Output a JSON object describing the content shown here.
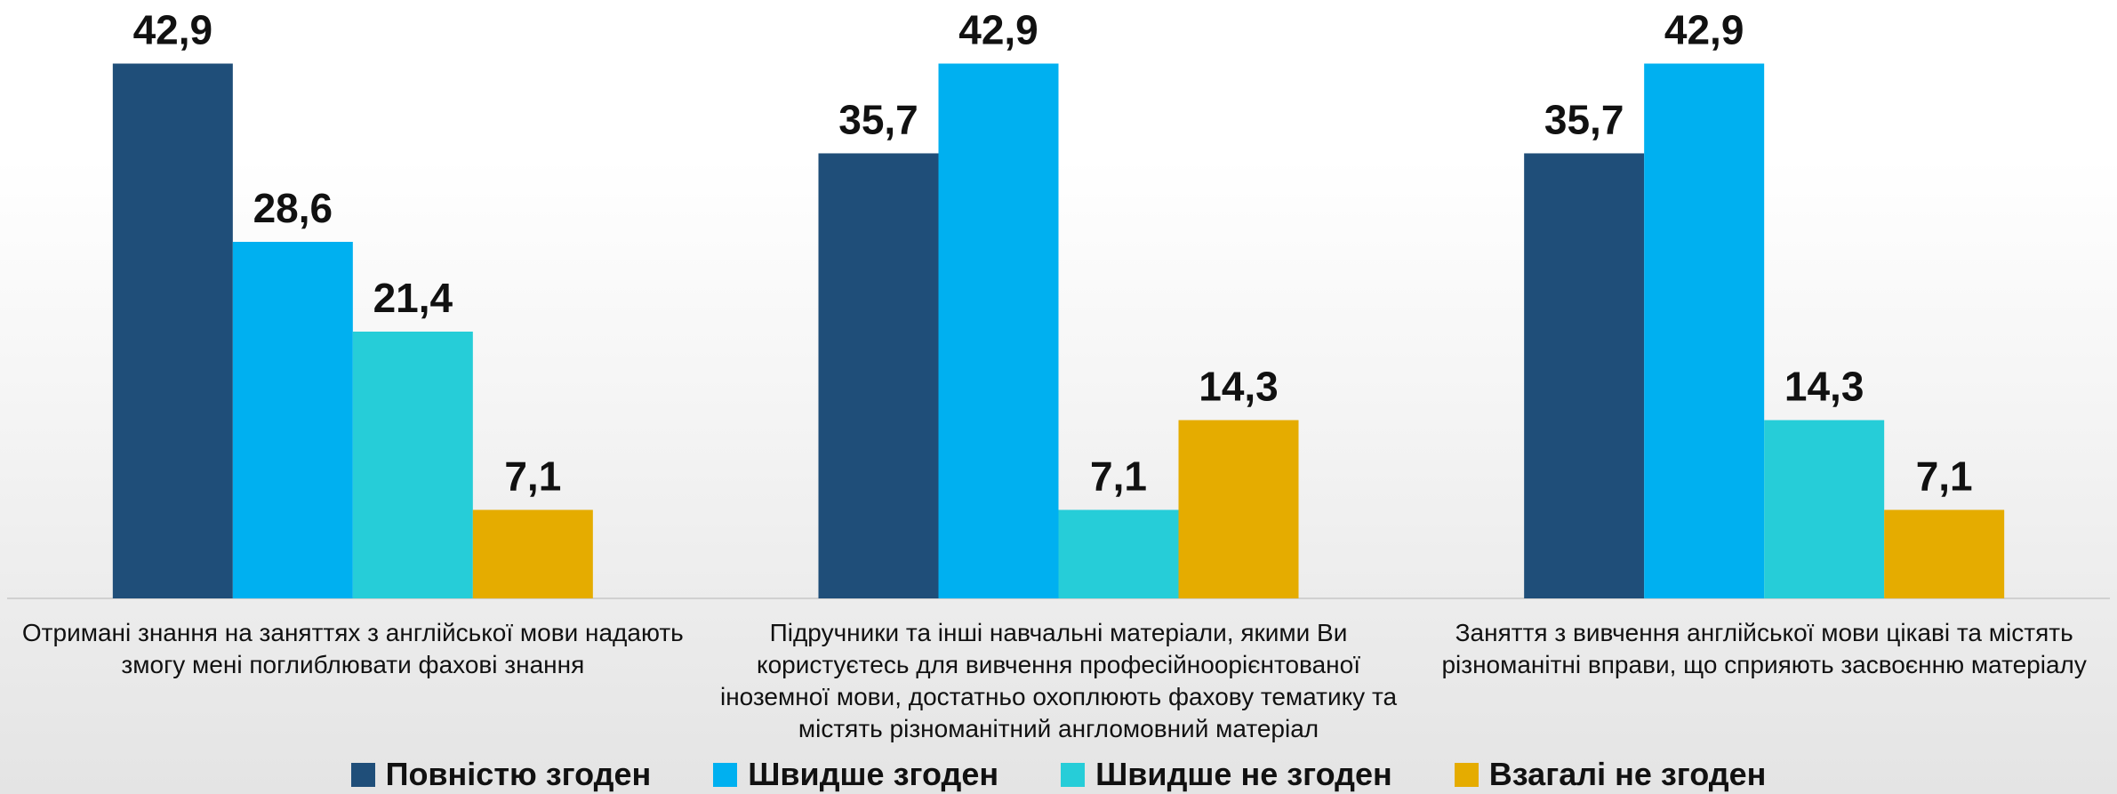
{
  "chart_data": {
    "type": "bar",
    "categories": [
      "Отримані знання на заняттях з англійської мови надають змогу мені поглиблювати фахові знання",
      "Підручники та інші навчальні матеріали, якими Ви користуєтесь для вивчення професійноорієнтованої іноземної мови, достатньо охоплюють фахову тематику та містять різноманітний англомовний матеріал",
      "Заняття з вивчення англійської мови цікаві та містять різноманітні вправи, що сприяють засвоєнню матеріалу"
    ],
    "series": [
      {
        "name": "Повністю згоден",
        "color": "#1f4e79",
        "values": [
          42.9,
          35.7,
          35.7
        ],
        "value_labels": [
          "42,9",
          "35,7",
          "35,7"
        ]
      },
      {
        "name": "Швидше згоден",
        "color": "#00b0f0",
        "values": [
          28.6,
          42.9,
          42.9
        ],
        "value_labels": [
          "28,6",
          "42,9",
          "42,9"
        ]
      },
      {
        "name": "Швидше не згоден",
        "color": "#26cdd8",
        "values": [
          21.4,
          7.1,
          14.3
        ],
        "value_labels": [
          "21,4",
          "7,1",
          "14,3"
        ]
      },
      {
        "name": "Взагалі не згоден",
        "color": "#e5ac00",
        "values": [
          7.1,
          14.3,
          7.1
        ],
        "value_labels": [
          "7,1",
          "14,3",
          "7,1"
        ]
      }
    ],
    "ylim": [
      0,
      48
    ],
    "legend": "bottom"
  }
}
